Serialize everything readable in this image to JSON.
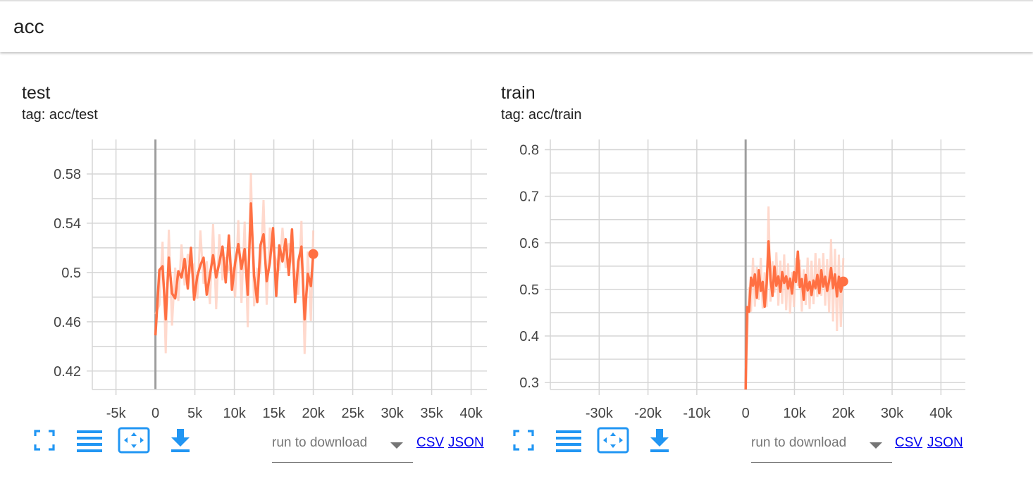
{
  "search": {
    "value": "acc"
  },
  "colors": {
    "accent": "#2196f3",
    "line": "#ff7043",
    "line_raw": "#ffccbc",
    "grid": "#d5d5d5",
    "axis_zero": "#9e9e9e"
  },
  "toolbar": {
    "icons": [
      "fullscreen-icon",
      "data-list-icon",
      "fit-domain-icon",
      "download-icon"
    ],
    "dropdown_label": "run to download",
    "csv_label": "CSV",
    "json_label": "JSON"
  },
  "cards": [
    {
      "title": "test",
      "tag": "tag: acc/test"
    },
    {
      "title": "train",
      "tag": "tag: acc/train"
    }
  ],
  "chart_data": [
    {
      "type": "line",
      "title": "test",
      "xlabel": "",
      "ylabel": "",
      "xlim": [
        -8000,
        42000
      ],
      "ylim": [
        0.405,
        0.608
      ],
      "xticks": [
        -5000,
        0,
        5000,
        10000,
        15000,
        20000,
        25000,
        30000,
        35000,
        40000
      ],
      "xtick_labels": [
        "-5k",
        "0",
        "5k",
        "10k",
        "15k",
        "20k",
        "25k",
        "30k",
        "35k",
        "40k"
      ],
      "yticks": [
        0.42,
        0.46,
        0.5,
        0.54,
        0.58
      ],
      "ytick_labels": [
        "0.42",
        "0.46",
        "0.5",
        "0.54",
        "0.58"
      ],
      "grid": true,
      "series": [
        {
          "x": [
            0,
            500,
            900,
            1300,
            1700,
            2100,
            2500,
            2900,
            3300,
            3700,
            4100,
            4500,
            4900,
            5300,
            5700,
            6100,
            6500,
            6900,
            7300,
            7700,
            8100,
            8500,
            8900,
            9300,
            9700,
            10100,
            10500,
            10900,
            11300,
            11700,
            12100,
            12500,
            12900,
            13300,
            13700,
            14100,
            14500,
            14900,
            15300,
            15700,
            16100,
            16500,
            16900,
            17300,
            17700,
            18100,
            18500,
            18900,
            19300,
            19700,
            20000
          ],
          "y": [
            0.449,
            0.502,
            0.505,
            0.462,
            0.512,
            0.483,
            0.479,
            0.501,
            0.496,
            0.511,
            0.487,
            0.52,
            0.478,
            0.497,
            0.506,
            0.512,
            0.482,
            0.498,
            0.514,
            0.496,
            0.508,
            0.521,
            0.492,
            0.53,
            0.486,
            0.508,
            0.523,
            0.503,
            0.519,
            0.482,
            0.556,
            0.497,
            0.476,
            0.522,
            0.531,
            0.493,
            0.508,
            0.536,
            0.481,
            0.522,
            0.509,
            0.527,
            0.498,
            0.535,
            0.476,
            0.509,
            0.521,
            0.462,
            0.499,
            0.489,
            0.515
          ]
        }
      ]
    },
    {
      "type": "line",
      "title": "train",
      "xlabel": "",
      "ylabel": "",
      "xlim": [
        -40000,
        45000
      ],
      "ylim": [
        0.285,
        0.822
      ],
      "xticks": [
        -30000,
        -20000,
        -10000,
        0,
        10000,
        20000,
        30000,
        40000
      ],
      "xtick_labels": [
        "-30k",
        "-20k",
        "-10k",
        "0",
        "10k",
        "20k",
        "30k",
        "40k"
      ],
      "yticks": [
        0.3,
        0.4,
        0.5,
        0.6,
        0.7,
        0.8
      ],
      "ytick_labels": [
        "0.3",
        "0.4",
        "0.5",
        "0.6",
        "0.7",
        "0.8"
      ],
      "grid": true,
      "series": [
        {
          "x": [
            0,
            300,
            700,
            1100,
            1500,
            1900,
            2300,
            2700,
            3100,
            3500,
            3900,
            4300,
            4700,
            5100,
            5500,
            5900,
            6300,
            6700,
            7100,
            7500,
            7900,
            8300,
            8700,
            9100,
            9500,
            9900,
            10300,
            10700,
            11100,
            11500,
            11900,
            12300,
            12700,
            13100,
            13500,
            13900,
            14300,
            14700,
            15100,
            15500,
            15900,
            16300,
            16700,
            17100,
            17500,
            17900,
            18300,
            18700,
            19100,
            19500,
            20000
          ],
          "y": [
            0.285,
            0.462,
            0.452,
            0.525,
            0.508,
            0.532,
            0.482,
            0.541,
            0.497,
            0.516,
            0.463,
            0.512,
            0.603,
            0.522,
            0.486,
            0.549,
            0.508,
            0.528,
            0.495,
            0.537,
            0.514,
            0.528,
            0.502,
            0.523,
            0.491,
            0.537,
            0.516,
            0.581,
            0.505,
            0.522,
            0.478,
            0.531,
            0.498,
            0.516,
            0.488,
            0.519,
            0.503,
            0.531,
            0.492,
            0.541,
            0.506,
            0.527,
            0.497,
            0.518,
            0.546,
            0.503,
            0.532,
            0.485,
            0.527,
            0.495,
            0.517
          ]
        }
      ]
    }
  ]
}
